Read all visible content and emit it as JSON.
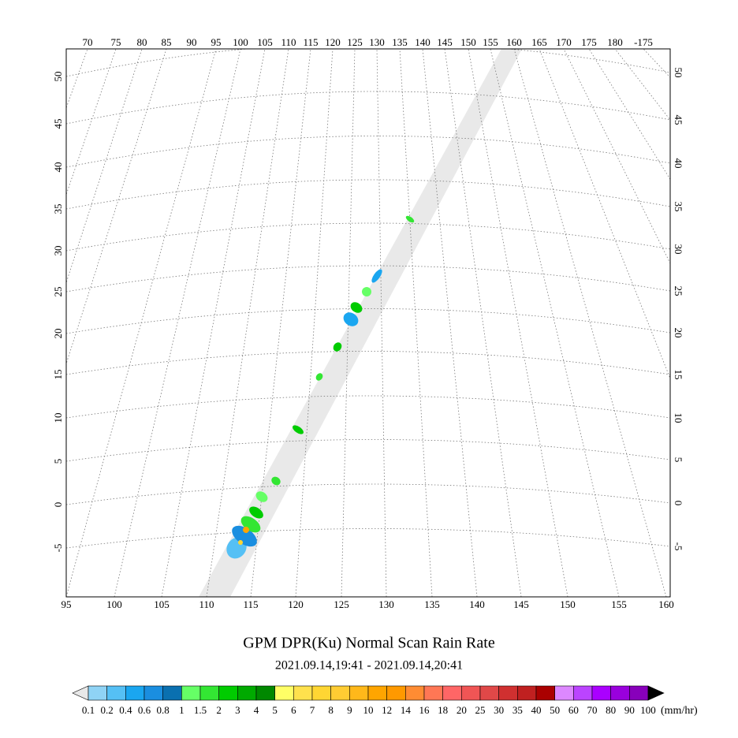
{
  "title": "GPM DPR(Ku) Normal Scan Rain Rate",
  "subtitle": "2021.09.14,19:41 - 2021.09.14,20:41",
  "map": {
    "top_lon_labels": [
      "70",
      "75",
      "80",
      "85",
      "90",
      "95",
      "100",
      "105",
      "110",
      "115",
      "120",
      "125",
      "130",
      "135",
      "140",
      "145",
      "150",
      "155",
      "160",
      "165",
      "170",
      "175",
      "180",
      "-175"
    ],
    "bottom_lon_labels": [
      "95",
      "100",
      "105",
      "110",
      "115",
      "120",
      "125",
      "130",
      "135",
      "140",
      "145",
      "150",
      "155",
      "160"
    ],
    "left_lat_labels": [
      "50",
      "45",
      "40",
      "35",
      "30",
      "25",
      "20",
      "15",
      "10",
      "5",
      "0",
      "-5"
    ],
    "right_lat_labels": [
      "50",
      "45",
      "40",
      "35",
      "30",
      "25",
      "20",
      "15",
      "10",
      "5",
      "0",
      "-5"
    ]
  },
  "colorbar": {
    "labels": [
      "0.1",
      "0.2",
      "0.4",
      "0.6",
      "0.8",
      "1",
      "1.5",
      "2",
      "3",
      "4",
      "5",
      "6",
      "7",
      "8",
      "9",
      "10",
      "12",
      "14",
      "16",
      "18",
      "20",
      "25",
      "30",
      "35",
      "40",
      "50",
      "60",
      "70",
      "80",
      "90",
      "100"
    ],
    "colors": [
      "#8fd3f5",
      "#55c0f5",
      "#1aa6f0",
      "#1a8ee0",
      "#0a70b0",
      "#66ff66",
      "#33e633",
      "#00cc00",
      "#00aa00",
      "#008800",
      "#ffff66",
      "#ffe14d",
      "#ffd633",
      "#ffcc33",
      "#ffb81a",
      "#ffa500",
      "#ff9900",
      "#ff8c33",
      "#ff7755",
      "#ff6666",
      "#f05555",
      "#e04848",
      "#d03030",
      "#c02020",
      "#aa0000",
      "#dd88ff",
      "#bb44ff",
      "#aa00ff",
      "#9900dd",
      "#8800bb"
    ],
    "under_color": "#e8e8e8",
    "over_color": "#000000",
    "unit": "(mm/hr)"
  }
}
